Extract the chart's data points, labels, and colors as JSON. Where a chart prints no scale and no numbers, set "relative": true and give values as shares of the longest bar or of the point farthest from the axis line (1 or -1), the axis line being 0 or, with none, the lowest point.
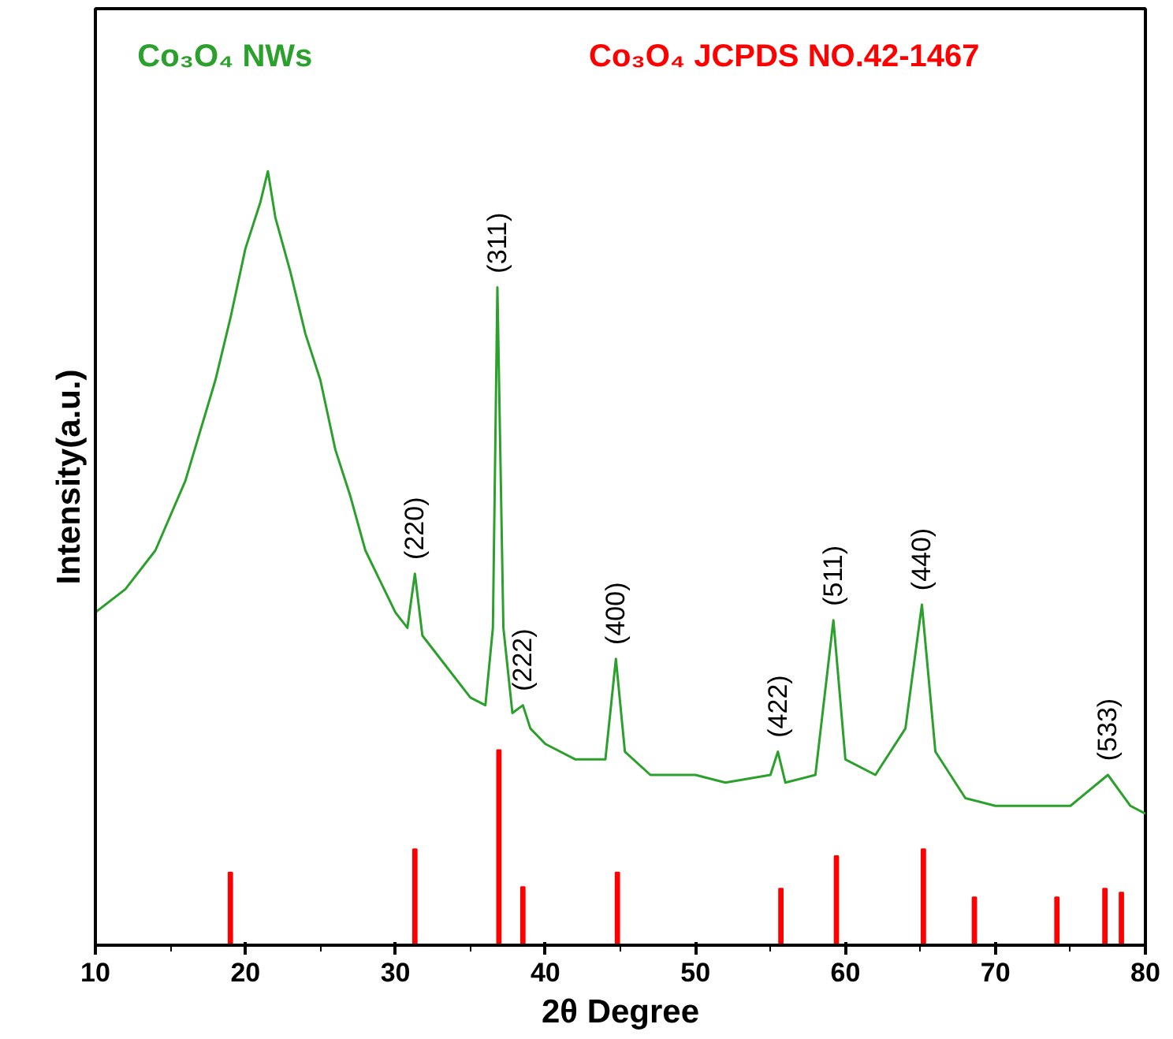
{
  "chart_data": {
    "type": "line",
    "relative": true,
    "xlabel": "2θ Degree",
    "ylabel": "Intensity(a.u.)",
    "xlim": [
      10,
      80
    ],
    "xticks": [
      10,
      20,
      30,
      40,
      50,
      60,
      70,
      80
    ],
    "grid": false,
    "series": [
      {
        "name": "Co₃O₄ NWs",
        "color": "#2ca02c",
        "x": [
          10,
          12,
          14,
          16,
          18,
          19,
          20,
          21,
          21.5,
          22,
          23,
          24,
          25,
          26,
          27,
          28,
          29,
          30,
          30.8,
          31.3,
          31.8,
          33,
          35,
          36,
          36.5,
          36.8,
          37.2,
          37.8,
          38.5,
          39,
          40,
          42,
          44,
          44.7,
          45.3,
          47,
          50,
          52,
          55,
          55.5,
          56,
          58,
          59.2,
          60,
          62,
          64,
          65.1,
          66,
          68,
          70,
          72,
          75,
          77.5,
          79,
          80
        ],
        "values": [
          0.43,
          0.46,
          0.51,
          0.6,
          0.73,
          0.81,
          0.9,
          0.96,
          1.0,
          0.94,
          0.87,
          0.79,
          0.73,
          0.64,
          0.58,
          0.51,
          0.47,
          0.43,
          0.41,
          0.48,
          0.4,
          0.37,
          0.32,
          0.31,
          0.41,
          0.85,
          0.41,
          0.3,
          0.31,
          0.28,
          0.26,
          0.24,
          0.24,
          0.37,
          0.25,
          0.22,
          0.22,
          0.21,
          0.22,
          0.25,
          0.21,
          0.22,
          0.42,
          0.24,
          0.22,
          0.28,
          0.44,
          0.25,
          0.19,
          0.18,
          0.18,
          0.18,
          0.22,
          0.18,
          0.17
        ]
      },
      {
        "name": "Co₃O₄ JCPDS NO.42-1467",
        "color": "#ff0000",
        "type": "bar",
        "x": [
          19.0,
          31.3,
          36.9,
          38.5,
          44.8,
          55.7,
          59.4,
          65.2,
          68.6,
          74.1,
          77.3,
          78.4
        ],
        "values": [
          0.094,
          0.124,
          0.252,
          0.075,
          0.094,
          0.073,
          0.115,
          0.124,
          0.062,
          0.062,
          0.073,
          0.068
        ]
      }
    ],
    "annotations": [
      {
        "text": "(220)",
        "x": 31.3,
        "y": 0.48
      },
      {
        "text": "(311)",
        "x": 36.8,
        "y": 0.85
      },
      {
        "text": "(222)",
        "x": 38.5,
        "y": 0.31
      },
      {
        "text": "(400)",
        "x": 44.7,
        "y": 0.37
      },
      {
        "text": "(422)",
        "x": 55.5,
        "y": 0.25
      },
      {
        "text": "(511)",
        "x": 59.2,
        "y": 0.42
      },
      {
        "text": "(440)",
        "x": 65.1,
        "y": 0.44
      },
      {
        "text": "(533)",
        "x": 77.5,
        "y": 0.22
      }
    ]
  }
}
